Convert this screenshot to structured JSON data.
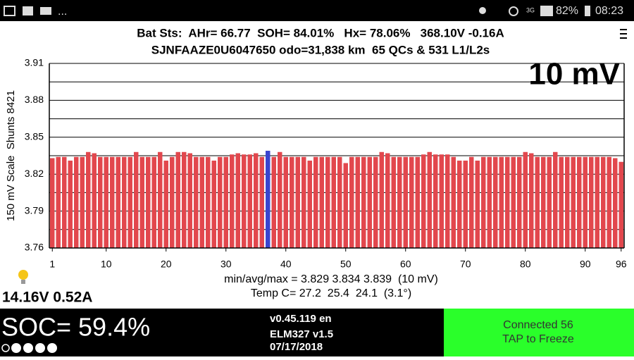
{
  "status_bar": {
    "more": "...",
    "network": "3G",
    "battery": "82%",
    "time": "08:23"
  },
  "header": {
    "line1": "Bat Sts:  AHr= 66.77  SOH= 84.01%   Hx= 78.06%   368.10V -0.16A",
    "line2": "SJNFAAZE0U6047650 odo=31,838 km  65 QCs & 531 L1/L2s"
  },
  "chart_data": {
    "type": "bar",
    "scale_label": "10 mV",
    "y_label": "150 mV Scale  Shunts 8421",
    "x": [
      1,
      2,
      3,
      4,
      5,
      6,
      7,
      8,
      9,
      10,
      11,
      12,
      13,
      14,
      15,
      16,
      17,
      18,
      19,
      20,
      21,
      22,
      23,
      24,
      25,
      26,
      27,
      28,
      29,
      30,
      31,
      32,
      33,
      34,
      35,
      36,
      37,
      38,
      39,
      40,
      41,
      42,
      43,
      44,
      45,
      46,
      47,
      48,
      49,
      50,
      51,
      52,
      53,
      54,
      55,
      56,
      57,
      58,
      59,
      60,
      61,
      62,
      63,
      64,
      65,
      66,
      67,
      68,
      69,
      70,
      71,
      72,
      73,
      74,
      75,
      76,
      77,
      78,
      79,
      80,
      81,
      82,
      83,
      84,
      85,
      86,
      87,
      88,
      89,
      90,
      91,
      92,
      93,
      94,
      95,
      96
    ],
    "values": [
      3.833,
      3.834,
      3.834,
      3.831,
      3.834,
      3.834,
      3.838,
      3.837,
      3.834,
      3.834,
      3.834,
      3.834,
      3.834,
      3.834,
      3.838,
      3.834,
      3.834,
      3.834,
      3.838,
      3.831,
      3.834,
      3.838,
      3.838,
      3.837,
      3.834,
      3.834,
      3.834,
      3.831,
      3.834,
      3.834,
      3.836,
      3.837,
      3.836,
      3.836,
      3.837,
      3.834,
      3.839,
      3.834,
      3.838,
      3.834,
      3.834,
      3.834,
      3.834,
      3.831,
      3.834,
      3.834,
      3.834,
      3.834,
      3.834,
      3.829,
      3.834,
      3.834,
      3.834,
      3.834,
      3.834,
      3.838,
      3.837,
      3.834,
      3.834,
      3.834,
      3.834,
      3.834,
      3.836,
      3.838,
      3.836,
      3.836,
      3.836,
      3.834,
      3.831,
      3.831,
      3.834,
      3.831,
      3.834,
      3.834,
      3.834,
      3.834,
      3.834,
      3.834,
      3.834,
      3.838,
      3.837,
      3.834,
      3.834,
      3.834,
      3.838,
      3.834,
      3.834,
      3.834,
      3.834,
      3.834,
      3.834,
      3.834,
      3.834,
      3.834,
      3.833,
      3.83
    ],
    "color": "#e2474d",
    "highlight_index": 36,
    "highlight_color": "#3a45cf",
    "xlim": [
      0.5,
      96.5
    ],
    "xticks": [
      1,
      10,
      20,
      30,
      40,
      50,
      60,
      70,
      80,
      90,
      96
    ],
    "ylim": [
      3.76,
      3.91
    ],
    "yticks": [
      3.76,
      3.79,
      3.82,
      3.85,
      3.88,
      3.91
    ],
    "grid": true,
    "stats": "min/avg/max = 3.829 3.834 3.839  (10 mV)",
    "temps": "Temp C= 27.2  25.4  24.1  (3.1°)"
  },
  "aux": "14.16V 0.52A",
  "footer": {
    "soc": "SOC= 59.4%",
    "version": "v0.45.119 en",
    "adapter": "ELM327 v1.5",
    "date": "07/17/2018",
    "connection": "Connected 56",
    "action": "TAP to Freeze"
  }
}
